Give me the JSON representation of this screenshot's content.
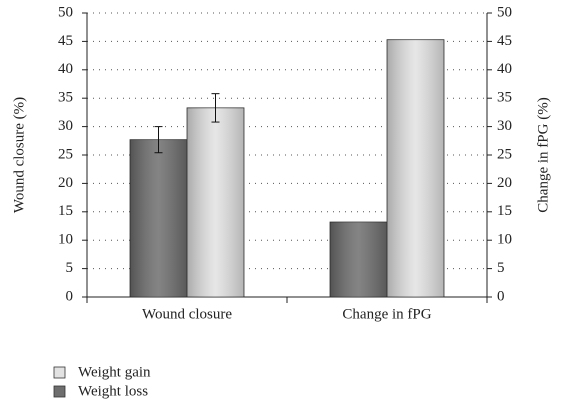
{
  "chart_data": {
    "type": "bar",
    "categories": [
      "Wound closure",
      "Change in fPG"
    ],
    "series": [
      {
        "name": "Weight loss",
        "color": "#6e6e6e",
        "values": [
          27.7,
          13.2
        ],
        "errors": [
          2.3,
          null
        ]
      },
      {
        "name": "Weight gain",
        "color": "#e2e2e2",
        "values": [
          33.3,
          45.3
        ],
        "errors": [
          2.5,
          null
        ]
      }
    ],
    "y_label": "Wound closure (%)",
    "y2_label": "Change in fPG (%)",
    "ylim": [
      0,
      50
    ],
    "yticks": [
      0,
      5,
      10,
      15,
      20,
      25,
      30,
      35,
      40,
      45,
      50
    ],
    "y2lim": [
      0,
      50
    ],
    "y2ticks": [
      0,
      5,
      10,
      15,
      20,
      25,
      30,
      35,
      40,
      45,
      50
    ],
    "grid": true
  }
}
